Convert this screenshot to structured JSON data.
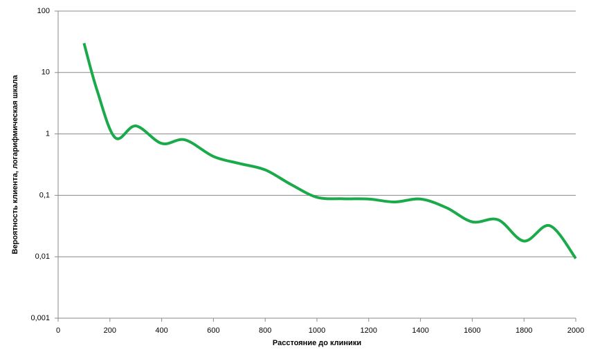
{
  "chart_data": {
    "type": "line",
    "x_label": "Расстояние  до клиники",
    "y_label": "Вероятность  клиента, логарифмическая  шкала",
    "x": [
      100,
      150,
      220,
      300,
      400,
      490,
      600,
      700,
      800,
      900,
      1000,
      1100,
      1200,
      1300,
      1400,
      1500,
      1600,
      1700,
      1800,
      1900,
      2000
    ],
    "series": [
      {
        "name": "Вероятность",
        "color": "#1aaa4a",
        "values": [
          30,
          5.2,
          0.87,
          1.35,
          0.7,
          0.8,
          0.43,
          0.33,
          0.26,
          0.15,
          0.093,
          0.088,
          0.087,
          0.078,
          0.087,
          0.063,
          0.037,
          0.04,
          0.018,
          0.032,
          0.0094
        ]
      }
    ],
    "xlim": [
      0,
      2000
    ],
    "xticks": [
      0,
      200,
      400,
      600,
      800,
      1000,
      1200,
      1400,
      1600,
      1800,
      2000
    ],
    "ylim": [
      0.001,
      100
    ],
    "log_y": true,
    "yticks": [
      {
        "value": 0.001,
        "label": "0,001"
      },
      {
        "value": 0.01,
        "label": "0,01"
      },
      {
        "value": 0.1,
        "label": "0,1"
      },
      1,
      10,
      100
    ],
    "grid": true
  }
}
